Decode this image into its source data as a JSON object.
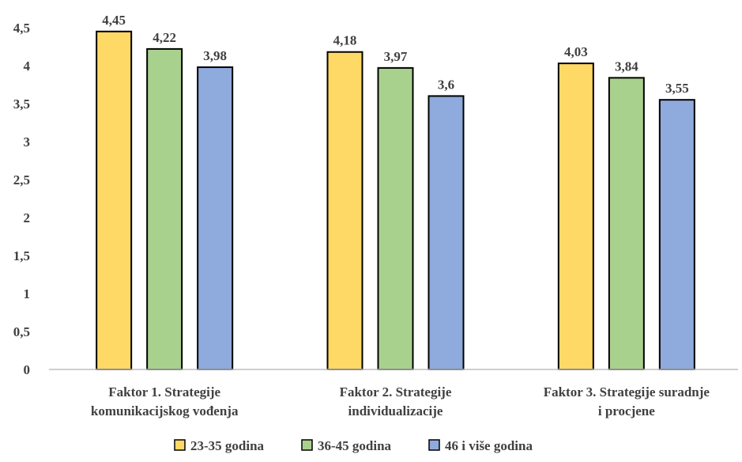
{
  "chart_data": {
    "type": "bar",
    "categories": [
      [
        "Faktor 1. Strategije",
        "komunikacijskog vođenja"
      ],
      [
        "Faktor 2. Strategije",
        "individualizacije"
      ],
      [
        "Faktor 3. Strategije suradnje",
        "i procjene"
      ]
    ],
    "series": [
      {
        "name": "23-35 godina",
        "values": [
          4.45,
          4.18,
          4.03
        ],
        "value_labels": [
          "4,45",
          "4,18",
          "4,03"
        ],
        "color": "#FFD966"
      },
      {
        "name": "36-45 godina",
        "values": [
          4.22,
          3.97,
          3.84
        ],
        "value_labels": [
          "4,22",
          "3,97",
          "3,84"
        ],
        "color": "#A9D18E"
      },
      {
        "name": "46 i više godina",
        "values": [
          3.98,
          3.6,
          3.55
        ],
        "value_labels": [
          "3,98",
          "3,6",
          "3,55"
        ],
        "color": "#8FAADC"
      }
    ],
    "y_ticks": [
      0,
      0.5,
      1,
      1.5,
      2,
      2.5,
      3,
      3.5,
      4,
      4.5
    ],
    "y_tick_labels": [
      "0",
      "0,5",
      "1",
      "1,5",
      "2",
      "2,5",
      "3",
      "3,5",
      "4",
      "4,5"
    ],
    "ylim": [
      0,
      4.5
    ],
    "grid": false,
    "legend": "bottom",
    "title": "",
    "xlabel": "",
    "ylabel": ""
  }
}
